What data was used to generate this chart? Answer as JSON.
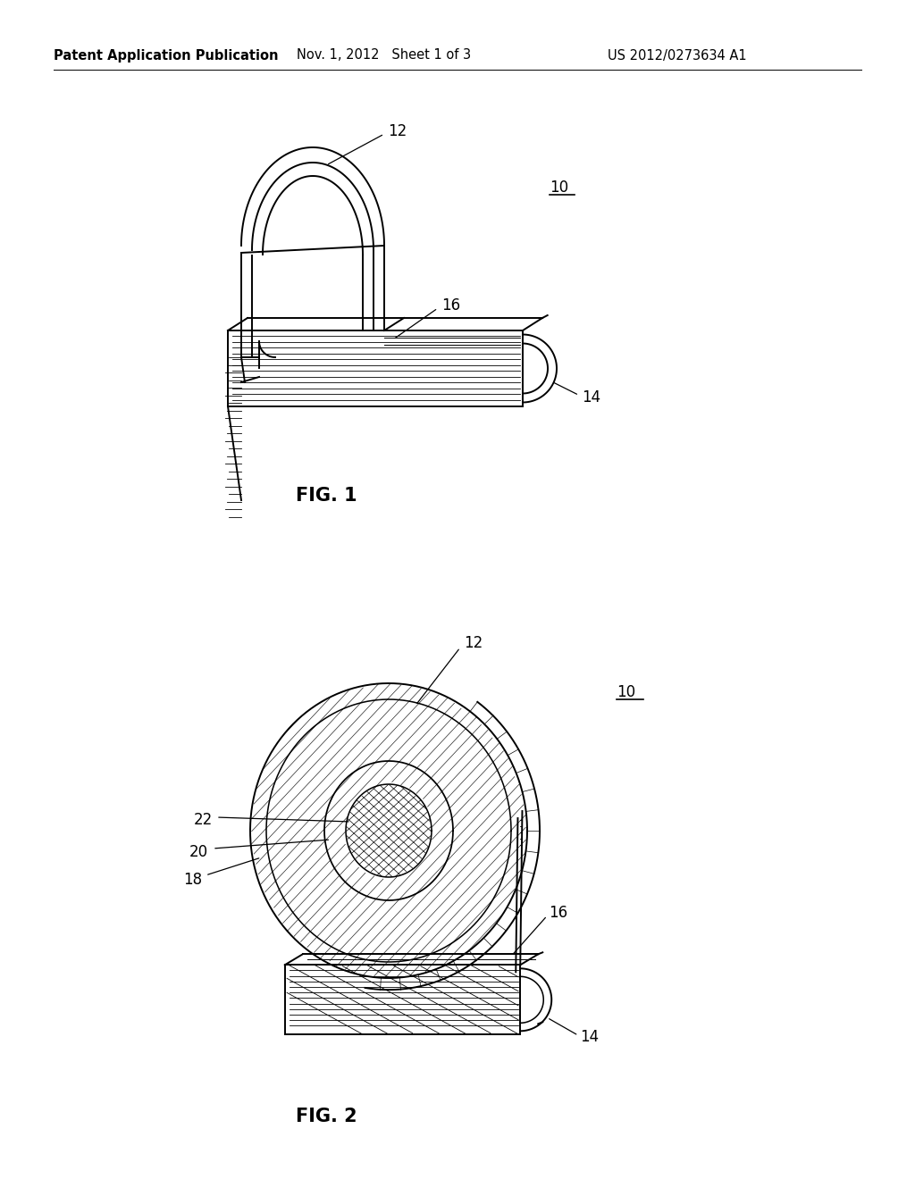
{
  "background_color": "#ffffff",
  "header_left": "Patent Application Publication",
  "header_center": "Nov. 1, 2012   Sheet 1 of 3",
  "header_right": "US 2012/0273634 A1",
  "header_fontsize": 10.5,
  "fig1_label": "FIG. 1",
  "fig2_label": "FIG. 2",
  "label_fontsize": 15,
  "ref_num_fontsize": 12,
  "line_color": "#000000",
  "line_width": 1.4
}
